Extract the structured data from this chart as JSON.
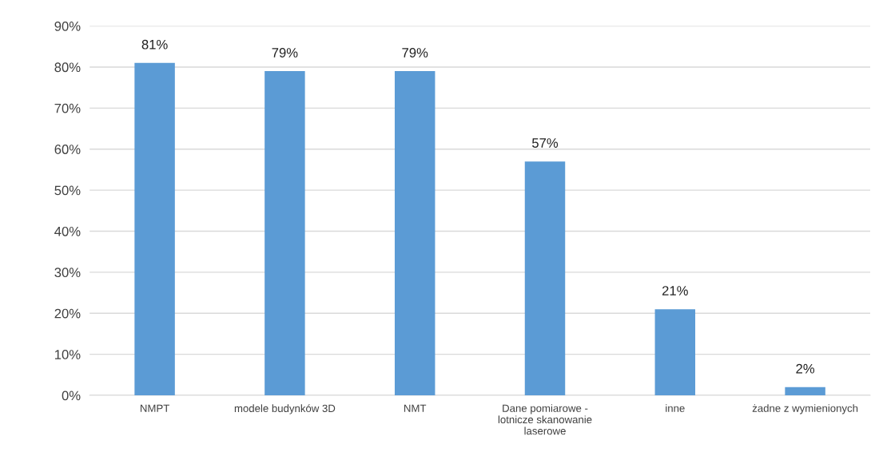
{
  "chart_data": {
    "type": "bar",
    "categories": [
      "NMPT",
      "modele budynków 3D",
      "NMT",
      "Dane pomiarowe -\nlotnicze skanowanie\nlaserowe",
      "inne",
      "żadne z wymienionych"
    ],
    "values": [
      81,
      79,
      79,
      57,
      21,
      2
    ],
    "value_labels": [
      "81%",
      "79%",
      "79%",
      "57%",
      "21%",
      "2%"
    ],
    "color": "#5b9bd5",
    "ylim": [
      0,
      90
    ],
    "yticks": [
      {
        "value": 0,
        "label": "0%"
      },
      {
        "value": 10,
        "label": "10%"
      },
      {
        "value": 20,
        "label": "20%"
      },
      {
        "value": 30,
        "label": "30%"
      },
      {
        "value": 40,
        "label": "40%"
      },
      {
        "value": 50,
        "label": "50%"
      },
      {
        "value": 60,
        "label": "60%"
      },
      {
        "value": 70,
        "label": "70%"
      },
      {
        "value": 80,
        "label": "80%"
      },
      {
        "value": 90,
        "label": "90%"
      }
    ],
    "grid": "y",
    "legend": false
  }
}
